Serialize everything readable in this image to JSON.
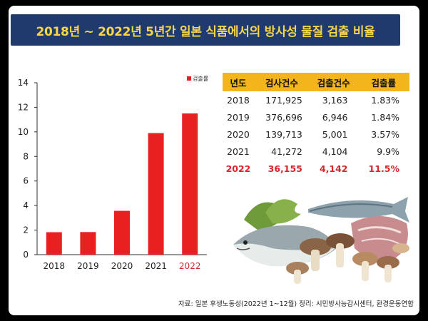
{
  "title": "2018년 ~ 2022년 5년간 일본 식품에서의 방사성 물질 검출 비율",
  "source": "자료: 일본 후생노동성(2022년 1~12월)  정리: 시민방사능감시센터, 환경운동연합",
  "colors": {
    "bar": "#e8201f",
    "title_bg": "#1f3b6e",
    "title_text": "#f7d64a",
    "header": "#f3b51b",
    "highlight": "#d8262b"
  },
  "chart_data": {
    "type": "bar",
    "categories": [
      "2018",
      "2019",
      "2020",
      "2021",
      "2022"
    ],
    "series": [
      {
        "name": "검출률",
        "values": [
          1.83,
          1.84,
          3.57,
          9.9,
          11.5
        ]
      }
    ],
    "ylim": [
      0,
      14
    ],
    "yticks": [
      "0",
      "2",
      "4",
      "6",
      "8",
      "10",
      "12",
      "14"
    ],
    "highlight_category": "2022",
    "legend_position": "top-right",
    "grid": false
  },
  "table": {
    "headers": [
      "년도",
      "검사건수",
      "검출건수",
      "검출률"
    ],
    "rows": [
      [
        "2018",
        "171,925",
        "3,163",
        "1.83%"
      ],
      [
        "2019",
        "376,696",
        "6,946",
        "1.84%"
      ],
      [
        "2020",
        "139,713",
        "5,001",
        "3.57%"
      ],
      [
        "2021",
        "41,272",
        "4,104",
        "9.9%"
      ],
      [
        "2022",
        "36,155",
        "4,142",
        "11.5%"
      ]
    ],
    "highlight_row": 4
  },
  "image": {
    "icon": "seafood-mushrooms-meat-illustration"
  }
}
